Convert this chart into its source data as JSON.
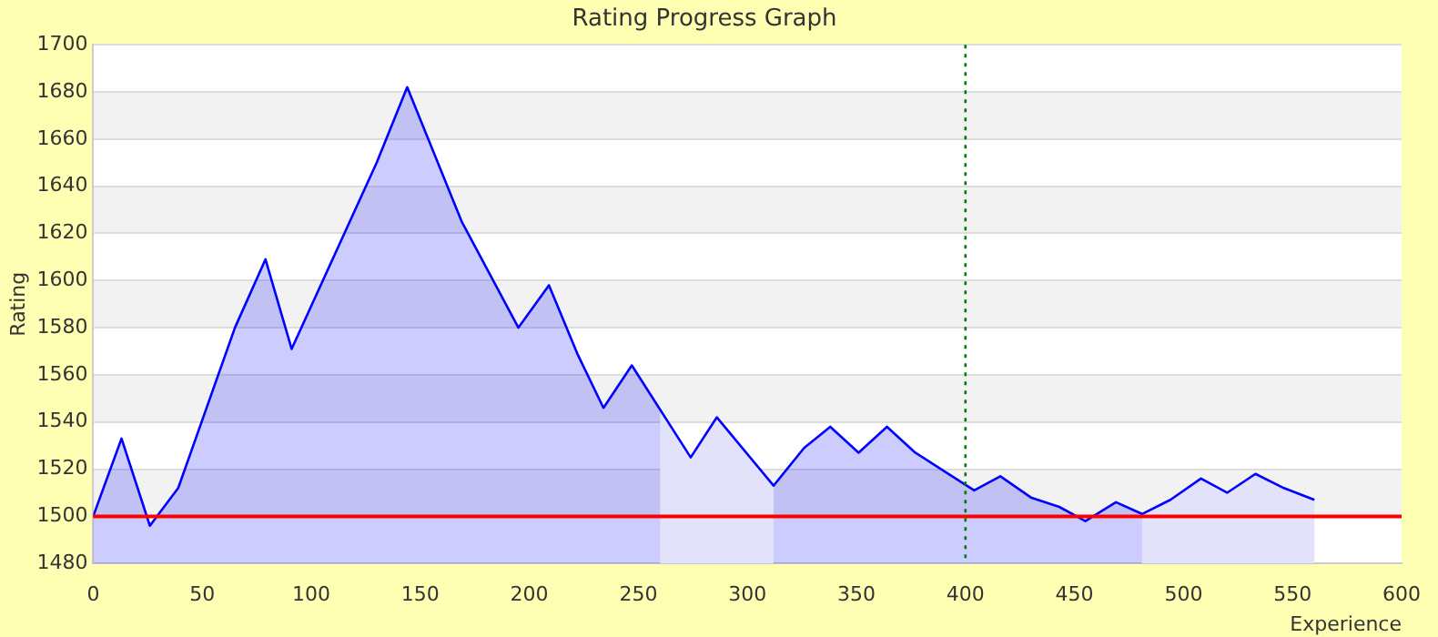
{
  "chart_data": {
    "type": "area",
    "title": "Rating Progress Graph",
    "xlabel": "Experience",
    "ylabel": "Rating",
    "x": [
      0,
      13,
      26,
      39,
      65,
      79,
      91,
      130,
      144,
      169,
      195,
      209,
      222,
      234,
      247,
      274,
      286,
      312,
      326,
      338,
      351,
      364,
      377,
      404,
      416,
      430,
      443,
      455,
      469,
      481,
      494,
      508,
      520,
      533,
      546,
      560
    ],
    "series": [
      {
        "color": "#0000ff",
        "values": [
          1500,
          1533,
          1496,
          1512,
          1580,
          1609,
          1571,
          1650,
          1682,
          1625,
          1580,
          1598,
          1569,
          1546,
          1564,
          1525,
          1542,
          1513,
          1529,
          1538,
          1527,
          1538,
          1527,
          1511,
          1517,
          1508,
          1504,
          1498,
          1506,
          1501,
          1507,
          1516,
          1510,
          1518,
          1512,
          1507
        ]
      }
    ],
    "bands": [
      {
        "axis": "x",
        "from": 260,
        "to": 312,
        "color": "#e2e2fb"
      },
      {
        "axis": "x",
        "from": 481,
        "to": 560,
        "color": "#e2e2fb"
      }
    ],
    "ref_lines": [
      {
        "axis": "y",
        "value": 1500,
        "color": "#ff0000",
        "line_style": "solid"
      },
      {
        "axis": "x",
        "value": 400,
        "color": "#008000",
        "line_style": "dotted"
      }
    ],
    "xlim": [
      0,
      600
    ],
    "xticks": [
      0,
      50,
      100,
      150,
      200,
      250,
      300,
      350,
      400,
      450,
      500,
      550,
      600
    ],
    "ylim": [
      1480,
      1700
    ],
    "yticks": [
      1480,
      1500,
      1520,
      1540,
      1560,
      1580,
      1600,
      1620,
      1640,
      1660,
      1680,
      1700
    ],
    "grid": "y",
    "legend": false,
    "marker": "none"
  }
}
